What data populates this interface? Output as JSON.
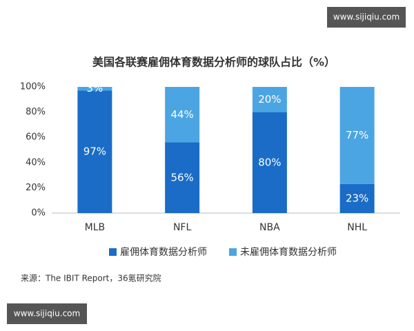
{
  "chart_data": {
    "type": "stacked_bar",
    "title": "美国各联赛雇佣体育数据分析师的球队占比（%）",
    "categories": [
      "MLB",
      "NFL",
      "NBA",
      "NHL"
    ],
    "series": [
      {
        "name": "雇佣体育数据分析师",
        "color": "#1a6cc6",
        "values": [
          97,
          56,
          80,
          23
        ],
        "value_labels": [
          "97%",
          "56%",
          "80%",
          "23%"
        ]
      },
      {
        "name": "未雇佣体育数据分析师",
        "color": "#4ba5e2",
        "values": [
          3,
          44,
          20,
          77
        ],
        "value_labels": [
          "3%",
          "44%",
          "20%",
          "77%"
        ]
      }
    ],
    "ylim": [
      0,
      100
    ],
    "yticks": [
      {
        "value": 0,
        "label": "0%"
      },
      {
        "value": 20,
        "label": "20%"
      },
      {
        "value": 40,
        "label": "40%"
      },
      {
        "value": 60,
        "label": "60%"
      },
      {
        "value": 80,
        "label": "80%"
      },
      {
        "value": 100,
        "label": "100%"
      }
    ],
    "legend": "bottom",
    "source": "来源：The IBIT Report，36氪研究院"
  },
  "watermarks": [
    "www.sijiqiu.com",
    "www.sijiqiu.com"
  ]
}
